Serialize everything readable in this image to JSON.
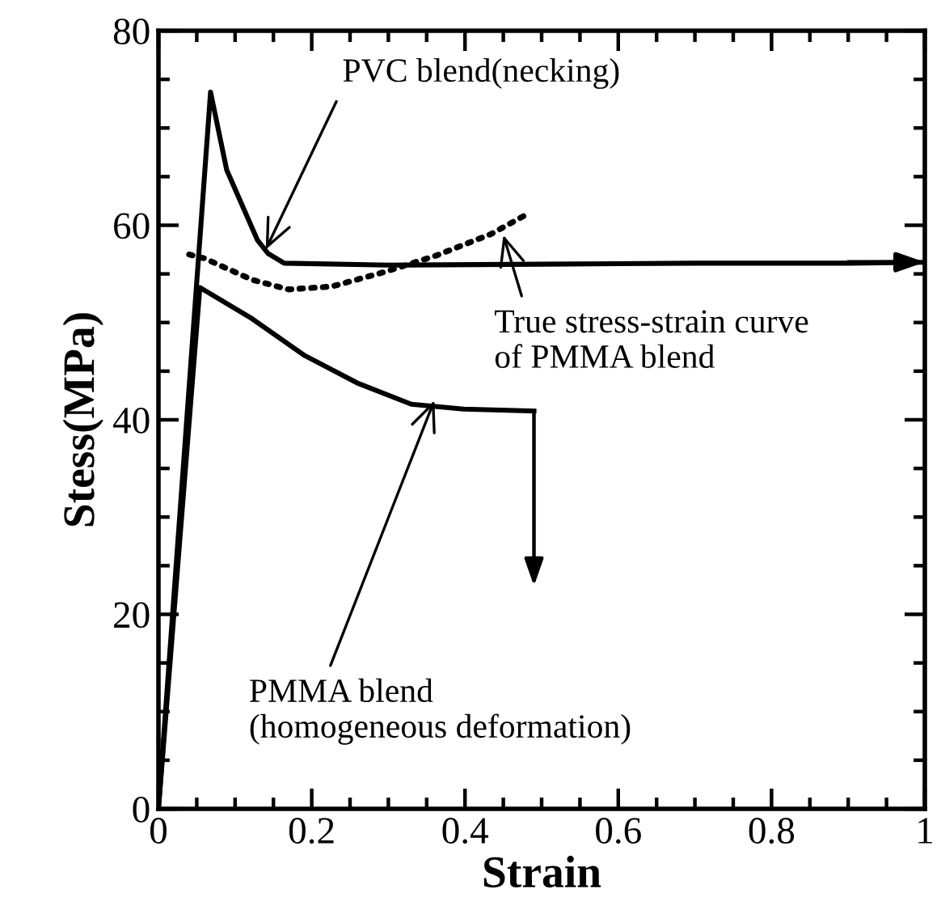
{
  "chart_data": {
    "type": "line",
    "xlabel": "Strain",
    "ylabel": "Stess(MPa)",
    "xlim": [
      0,
      1
    ],
    "ylim": [
      0,
      80
    ],
    "xticks": [
      0,
      {
        "value": 0.05,
        "label": null
      },
      0.2,
      {
        "value": 0.1,
        "label": null
      },
      {
        "value": 0.15,
        "label": null
      },
      {
        "value": 0.25,
        "label": null
      },
      {
        "value": 0.3,
        "label": null
      },
      {
        "value": 0.35,
        "label": null
      },
      0.4,
      {
        "value": 0.45,
        "label": null
      },
      {
        "value": 0.5,
        "label": null
      },
      {
        "value": 0.55,
        "label": null
      },
      0.6,
      {
        "value": 0.65,
        "label": null
      },
      {
        "value": 0.7,
        "label": null
      },
      {
        "value": 0.75,
        "label": null
      },
      0.8,
      {
        "value": 0.85,
        "label": null
      },
      {
        "value": 0.9,
        "label": null
      },
      {
        "value": 0.95,
        "label": null
      },
      1
    ],
    "yticks": [
      0,
      {
        "value": 5,
        "label": null
      },
      {
        "value": 10,
        "label": null
      },
      {
        "value": 15,
        "label": null
      },
      20,
      {
        "value": 25,
        "label": null
      },
      {
        "value": 30,
        "label": null
      },
      {
        "value": 35,
        "label": null
      },
      40,
      {
        "value": 45,
        "label": null
      },
      {
        "value": 50,
        "label": null
      },
      {
        "value": 55,
        "label": null
      },
      60,
      {
        "value": 65,
        "label": null
      },
      {
        "value": 70,
        "label": null
      },
      {
        "value": 75,
        "label": null
      },
      80
    ],
    "grid": false,
    "legend": false,
    "marker": "none",
    "series": [
      {
        "color": "#000000",
        "line_style": "solid",
        "x": [
          0,
          0.068,
          0.089,
          0.129,
          0.143,
          0.164,
          0.3,
          0.5,
          0.7,
          0.9,
          1.0
        ],
        "values": [
          0,
          73.7,
          65.7,
          58.5,
          57.1,
          56.1,
          55.9,
          56.0,
          56.1,
          56.1,
          56.2
        ]
      },
      {
        "color": "#000000",
        "line_style": "solid",
        "x": [
          0,
          0.054,
          0.122,
          0.191,
          0.259,
          0.33,
          0.398,
          0.49
        ],
        "values": [
          0,
          53.6,
          50.4,
          46.6,
          43.8,
          41.6,
          41.1,
          40.9
        ]
      },
      {
        "color": "#000000",
        "line_style": "dotted",
        "x": [
          0.04,
          0.06,
          0.122,
          0.17,
          0.226,
          0.295,
          0.363,
          0.434,
          0.48
        ],
        "values": [
          57,
          56.6,
          54.4,
          53.4,
          53.7,
          55.2,
          56.9,
          59.1,
          61.1
        ]
      }
    ],
    "annotations": [
      {
        "text": "PVC blend(necking)",
        "x": 0.14,
        "y": 57.5
      },
      {
        "text": "True stress-strain curve\nof PMMA blend",
        "x": 0.45,
        "y": 59
      },
      {
        "text": "PMMA blend\n(homogeneous deformation)",
        "x": 0.36,
        "y": 42
      }
    ]
  }
}
